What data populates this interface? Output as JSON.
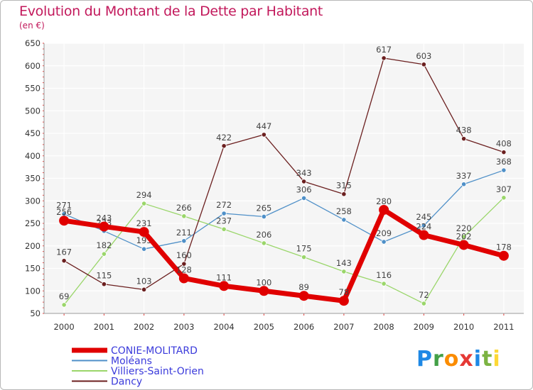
{
  "title": "Evolution du Montant de la Dette par Habitant",
  "subtitle": "(en €)",
  "logo": {
    "text": "Proxiti",
    "colors": [
      "#1e88e5",
      "#43a047",
      "#fb8c00",
      "#e53935",
      "#1e88e5",
      "#7cb342",
      "#fdd835"
    ]
  },
  "chart_data": {
    "type": "line",
    "x": [
      "2000",
      "2001",
      "2002",
      "2003",
      "2004",
      "2005",
      "2006",
      "2007",
      "2008",
      "2009",
      "2010",
      "2011"
    ],
    "ylim": [
      50,
      650
    ],
    "yticks": [
      50,
      100,
      150,
      200,
      250,
      300,
      350,
      400,
      450,
      500,
      550,
      600,
      650
    ],
    "grid": true,
    "legend_position": "bottom-left",
    "series": [
      {
        "name": "CONIE-MOLITARD",
        "color": "#e00000",
        "values": [
          256,
          243,
          231,
          128,
          111,
          100,
          89,
          78,
          280,
          224,
          202,
          178
        ],
        "labels": [
          "256",
          "243",
          "231",
          "128",
          "111",
          "100",
          "89",
          "78",
          "280",
          "224",
          "202",
          "178"
        ]
      },
      {
        "name": "Moléans",
        "color": "#4f90c8",
        "values": [
          271,
          233,
          193,
          211,
          272,
          265,
          306,
          258,
          209,
          245,
          337,
          368
        ],
        "labels": [
          "271",
          "233",
          "193",
          "211",
          "272",
          "265",
          "306",
          "258",
          "209",
          "245",
          "337",
          "368"
        ]
      },
      {
        "name": "Villiers-Saint-Orien",
        "color": "#9ad66a",
        "values": [
          69,
          182,
          294,
          266,
          237,
          206,
          175,
          143,
          116,
          72,
          220,
          307
        ],
        "labels": [
          "69",
          "182",
          "294",
          "266",
          "237",
          "206",
          "175",
          "143",
          "116",
          "72",
          "220",
          "307"
        ]
      },
      {
        "name": "Dancy",
        "color": "#6b1f1f",
        "values": [
          167,
          115,
          103,
          160,
          422,
          447,
          343,
          315,
          617,
          603,
          438,
          408
        ],
        "labels": [
          "167",
          "115",
          "103",
          "160",
          "422",
          "447",
          "343",
          "315",
          "617",
          "603",
          "438",
          "408"
        ]
      }
    ]
  }
}
